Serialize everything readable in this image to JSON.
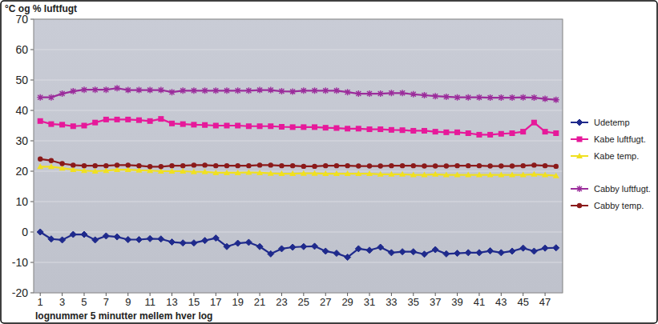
{
  "chart_data": {
    "type": "line",
    "title": "°C og % luftfugt",
    "x_label": "lognummer 5 minutter mellem hver log",
    "x": [
      1,
      2,
      3,
      4,
      5,
      6,
      7,
      8,
      9,
      10,
      11,
      12,
      13,
      14,
      15,
      16,
      17,
      18,
      19,
      20,
      21,
      22,
      23,
      24,
      25,
      26,
      27,
      28,
      29,
      30,
      31,
      32,
      33,
      34,
      35,
      36,
      37,
      38,
      39,
      40,
      41,
      42,
      43,
      44,
      45,
      46,
      47,
      48
    ],
    "xlim": [
      0.4,
      48.6
    ],
    "xticks": [
      1,
      3,
      5,
      7,
      9,
      11,
      13,
      15,
      17,
      19,
      21,
      23,
      25,
      27,
      29,
      31,
      33,
      35,
      37,
      39,
      41,
      43,
      45,
      47
    ],
    "ylim": [
      -20,
      70
    ],
    "yticks": [
      -20,
      -10,
      0,
      10,
      20,
      30,
      40,
      50,
      60,
      70
    ],
    "grid": true,
    "legend": "right",
    "series": [
      {
        "name": "Udetemp",
        "color": "#1f2a8c",
        "marker": "diamond",
        "values": [
          0,
          -2.3,
          -2.6,
          -0.8,
          -0.8,
          -2.6,
          -1.3,
          -1.6,
          -2.5,
          -2.5,
          -2.2,
          -2.3,
          -3.3,
          -3.6,
          -3.6,
          -2.8,
          -2.0,
          -4.8,
          -3.7,
          -3.4,
          -4.8,
          -7.2,
          -5.5,
          -5.0,
          -4.8,
          -4.7,
          -6.3,
          -7.0,
          -8.3,
          -5.5,
          -6.0,
          -5.0,
          -6.8,
          -6.5,
          -6.5,
          -7.3,
          -5.8,
          -7.2,
          -7.0,
          -6.8,
          -6.8,
          -6.2,
          -6.8,
          -6.3,
          -5.3,
          -6.3,
          -5.3,
          -5.2
        ]
      },
      {
        "name": "Kabe luftfugt.",
        "color": "#e6199a",
        "marker": "square",
        "values": [
          36.5,
          35.5,
          35.3,
          34.8,
          35,
          36,
          37,
          37,
          37,
          36.8,
          36.5,
          37.2,
          35.7,
          35.5,
          35.3,
          35.2,
          35,
          35,
          35,
          34.8,
          34.8,
          34.8,
          34.6,
          34.5,
          34.5,
          34.5,
          34.3,
          34.2,
          34,
          34,
          33.8,
          33.8,
          33.6,
          33.5,
          33.3,
          33.3,
          33,
          32.8,
          32.8,
          32.5,
          32,
          32,
          32.3,
          32.5,
          33,
          36,
          33,
          32.5
        ]
      },
      {
        "name": "Kabe temp.",
        "color": "#f0e020",
        "marker": "triangle",
        "values": [
          21.5,
          21.5,
          21,
          20.5,
          20.2,
          20,
          20.2,
          20.5,
          20.5,
          20.3,
          20.2,
          20,
          20,
          20,
          19.8,
          19.8,
          19.5,
          19.5,
          19.5,
          19.6,
          19.5,
          19.3,
          19.2,
          19.2,
          19.3,
          19.3,
          19.2,
          19.2,
          19.2,
          19.2,
          19.2,
          19,
          19,
          19,
          18.8,
          18.8,
          19,
          18.8,
          18.8,
          18.8,
          18.8,
          18.8,
          18.8,
          18.8,
          18.8,
          19,
          18.8,
          18.5
        ]
      },
      {
        "name": "Cabby luftfugt.",
        "color": "#9b2d9b",
        "marker": "star",
        "values": [
          44.3,
          44.3,
          45.5,
          46.3,
          46.8,
          46.8,
          46.8,
          47.3,
          46.7,
          46.7,
          46.7,
          46.7,
          46,
          46.5,
          46.5,
          46.5,
          46.5,
          46.5,
          46.5,
          46.5,
          46.7,
          46.7,
          46.3,
          46.2,
          46.5,
          46.5,
          46.5,
          46.5,
          46,
          45.5,
          45.5,
          45.5,
          45.7,
          45.7,
          45.3,
          45,
          44.7,
          44.5,
          44.3,
          44.3,
          44.3,
          44.2,
          44.2,
          44.2,
          44.3,
          44.2,
          43.8,
          43.5
        ]
      },
      {
        "name": "Cabby temp.",
        "color": "#8b1a1a",
        "marker": "circle",
        "values": [
          24,
          23.5,
          22.5,
          22,
          21.8,
          21.8,
          21.8,
          22,
          22,
          21.8,
          21.5,
          21.5,
          21.8,
          21.8,
          22,
          22,
          21.8,
          21.8,
          21.8,
          21.8,
          22,
          22,
          21.8,
          21.8,
          21.6,
          21.6,
          21.8,
          21.8,
          21.8,
          21.7,
          21.7,
          21.7,
          21.8,
          21.8,
          21.8,
          21.7,
          21.7,
          21.7,
          21.8,
          21.8,
          21.8,
          21.7,
          21.7,
          21.7,
          21.8,
          22,
          21.8,
          21.6
        ]
      }
    ]
  }
}
